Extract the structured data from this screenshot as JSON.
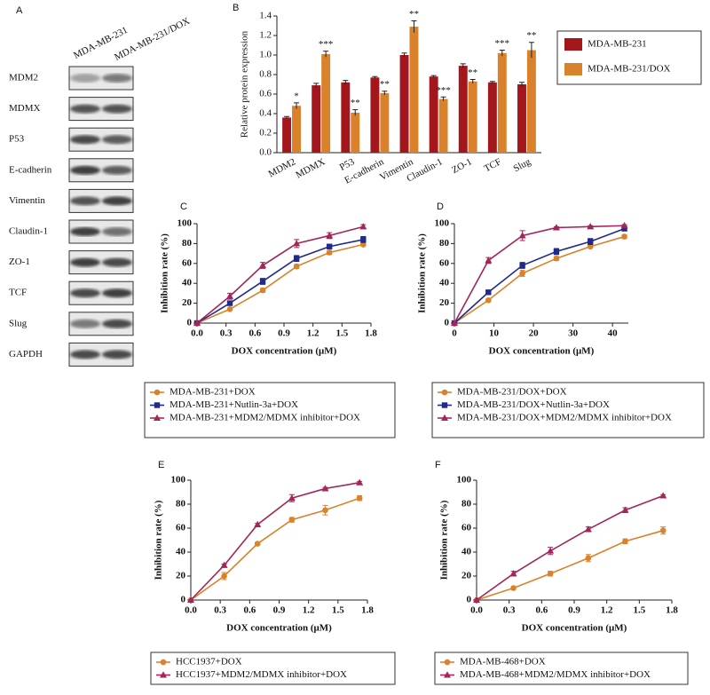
{
  "blot": {
    "panel": "A",
    "columns": [
      "MDA-MB-231",
      "MDA-MB-231/DOX"
    ],
    "rows": [
      "MDM2",
      "MDMX",
      "P53",
      "E-cadherin",
      "Vimentin",
      "Claudin-1",
      "ZO-1",
      "TCF",
      "Slug",
      "GAPDH"
    ]
  },
  "chart_data": [
    {
      "type": "bar",
      "panel": "B",
      "ylabel": "Relative protein expression",
      "categories": [
        "MDM2",
        "MDMX",
        "P53",
        "E-cadherin",
        "Vimentin",
        "Claudin-1",
        "ZO-1",
        "TCF",
        "Slug"
      ],
      "ylim": [
        0,
        1.4
      ],
      "yticks": [
        {
          "value": 0,
          "label": "0.0"
        },
        0.2,
        0.4,
        0.6,
        0.8,
        {
          "value": 1,
          "label": "1.0"
        },
        1.2,
        1.4
      ],
      "series": [
        {
          "name": "MDA-MB-231",
          "color": "#a3171c",
          "values": [
            0.36,
            0.69,
            0.72,
            0.77,
            1.0,
            0.78,
            0.89,
            0.72,
            0.7
          ],
          "errors": [
            0.01,
            0.02,
            0.02,
            0.01,
            0.02,
            0.01,
            0.02,
            0.01,
            0.02
          ]
        },
        {
          "name": "MDA-MB-231/DOX",
          "color": "#d9822b",
          "values": [
            0.48,
            1.01,
            0.41,
            0.61,
            1.29,
            0.55,
            0.73,
            1.02,
            1.05
          ],
          "errors": [
            0.03,
            0.03,
            0.03,
            0.02,
            0.06,
            0.02,
            0.02,
            0.03,
            0.08
          ],
          "significance": [
            "*",
            "***",
            "**",
            "**",
            "**",
            "***",
            "**",
            "***",
            "**"
          ]
        }
      ]
    },
    {
      "type": "line",
      "panel": "C",
      "xlabel": "DOX concentration (μM)",
      "ylabel": "Inhibition rate (%)",
      "x": [
        0,
        0.34,
        0.68,
        1.03,
        1.37,
        1.72
      ],
      "xlim": [
        0,
        1.8
      ],
      "xticks": [
        {
          "value": 0,
          "label": "0.0"
        },
        0.3,
        0.6,
        0.9,
        1.2,
        1.5,
        1.8
      ],
      "ylim": [
        0,
        100
      ],
      "yticks": [
        0,
        20,
        40,
        60,
        80,
        100
      ],
      "series": [
        {
          "name": "MDA-MB-231+DOX",
          "color": "#d9822b",
          "marker": "circle",
          "values": [
            0,
            14,
            33,
            57,
            71,
            79
          ],
          "errors": [
            0,
            1,
            2,
            2,
            2,
            1
          ]
        },
        {
          "name": "MDA-MB-231+Nutlin-3a+DOX",
          "color": "#1f2a8a",
          "marker": "square",
          "values": [
            0,
            20,
            42,
            65,
            77,
            84
          ],
          "errors": [
            0,
            2,
            3,
            3,
            2,
            3
          ]
        },
        {
          "name": "MDA-MB-231+MDM2/MDMX inhibitor+DOX",
          "color": "#a3265a",
          "marker": "triangle",
          "values": [
            0,
            27,
            58,
            80,
            88,
            97
          ],
          "errors": [
            0,
            3,
            3,
            4,
            3,
            2
          ]
        }
      ]
    },
    {
      "type": "line",
      "panel": "D",
      "xlabel": "DOX concentration (μM)",
      "ylabel": "Inhibition rate (%)",
      "x": [
        0,
        8.6,
        17.2,
        25.8,
        34.4,
        43
      ],
      "xlim": [
        0,
        44
      ],
      "xticks": [
        0,
        10,
        20,
        30,
        40
      ],
      "ylim": [
        0,
        100
      ],
      "yticks": [
        0,
        20,
        40,
        60,
        80,
        100
      ],
      "series": [
        {
          "name": "MDA-MB-231/DOX+DOX",
          "color": "#d9822b",
          "marker": "circle",
          "values": [
            0,
            23,
            50,
            65,
            77,
            87
          ],
          "errors": [
            0,
            1,
            3,
            2,
            1,
            2
          ]
        },
        {
          "name": "MDA-MB-231/DOX+Nutlin-3a+DOX",
          "color": "#1f2a8a",
          "marker": "square",
          "values": [
            0,
            31,
            58,
            72,
            82,
            95
          ],
          "errors": [
            0,
            2,
            3,
            3,
            3,
            2
          ]
        },
        {
          "name": "MDA-MB-231/DOX+MDM2/MDMX inhibitor+DOX",
          "color": "#a3265a",
          "marker": "triangle",
          "values": [
            0,
            63,
            88,
            96,
            97,
            98
          ],
          "errors": [
            0,
            3,
            5,
            1,
            1,
            1
          ]
        }
      ]
    },
    {
      "type": "line",
      "panel": "E",
      "xlabel": "DOX concentration (μM)",
      "ylabel": "Inhibition rate (%)",
      "x": [
        0,
        0.34,
        0.68,
        1.03,
        1.37,
        1.72
      ],
      "xlim": [
        0,
        1.8
      ],
      "xticks": [
        {
          "value": 0,
          "label": "0.0"
        },
        0.3,
        0.6,
        0.9,
        1.2,
        1.5,
        1.8
      ],
      "ylim": [
        0,
        100
      ],
      "yticks": [
        0,
        20,
        40,
        60,
        80,
        100
      ],
      "series": [
        {
          "name": "HCC1937+DOX",
          "color": "#d9822b",
          "marker": "circle",
          "values": [
            0,
            20,
            47,
            67,
            75,
            85
          ],
          "errors": [
            0,
            3,
            1,
            2,
            4,
            2
          ]
        },
        {
          "name": "HCC1937+MDM2/MDMX inhibitor+DOX",
          "color": "#a3265a",
          "marker": "triangle",
          "values": [
            0,
            29,
            63,
            85,
            93,
            98
          ],
          "errors": [
            0,
            1,
            1,
            3,
            1,
            1
          ]
        }
      ]
    },
    {
      "type": "line",
      "panel": "F",
      "xlabel": "DOX concentration (μM)",
      "ylabel": "Inhibition rate (%)",
      "x": [
        0,
        0.34,
        0.68,
        1.03,
        1.37,
        1.72
      ],
      "xlim": [
        0,
        1.8
      ],
      "xticks": [
        {
          "value": 0,
          "label": "0.0"
        },
        0.3,
        0.6,
        0.9,
        1.2,
        1.5,
        1.8
      ],
      "ylim": [
        0,
        100
      ],
      "yticks": [
        0,
        20,
        40,
        60,
        80,
        100
      ],
      "series": [
        {
          "name": "MDA-MB-468+DOX",
          "color": "#d9822b",
          "marker": "circle",
          "values": [
            0,
            10,
            22,
            35,
            49,
            58
          ],
          "errors": [
            0,
            1,
            2,
            3,
            2,
            3
          ]
        },
        {
          "name": "MDA-MB-468+MDM2/MDMX inhibitor+DOX",
          "color": "#a3265a",
          "marker": "triangle",
          "values": [
            0,
            22,
            41,
            59,
            75,
            87
          ],
          "errors": [
            0,
            2,
            3,
            2,
            2,
            1
          ]
        }
      ]
    }
  ]
}
